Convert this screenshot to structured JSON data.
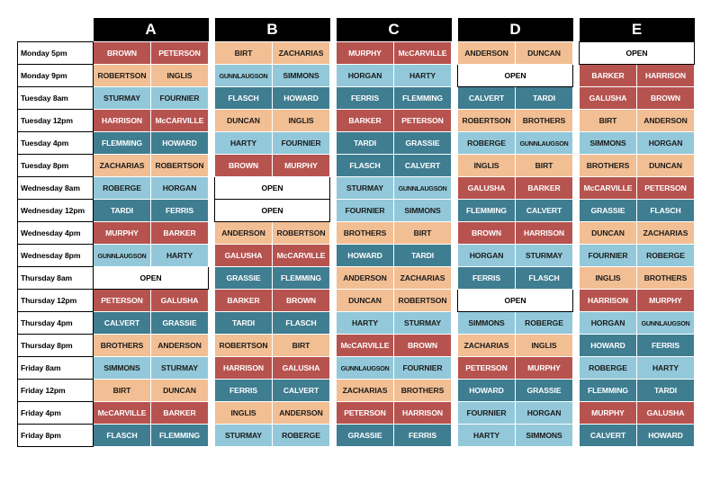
{
  "colors": {
    "red": "#b7534f",
    "blue": "#3f7d91",
    "light": "#92c8d9",
    "peach": "#f2be93",
    "header": "#000000"
  },
  "groups": [
    "A",
    "B",
    "C",
    "D",
    "E"
  ],
  "rows": [
    {
      "slot": "Monday 5pm",
      "groups": [
        [
          [
            "BROWN",
            "red"
          ],
          [
            "PETERSON",
            "red"
          ]
        ],
        [
          [
            "BIRT",
            "peach"
          ],
          [
            "ZACHARIAS",
            "peach"
          ]
        ],
        [
          [
            "MURPHY",
            "red"
          ],
          [
            "McCARVILLE",
            "red"
          ]
        ],
        [
          [
            "ANDERSON",
            "peach"
          ],
          [
            "DUNCAN",
            "peach"
          ]
        ],
        [
          [
            "OPEN",
            "open"
          ]
        ]
      ]
    },
    {
      "slot": "Monday 9pm",
      "groups": [
        [
          [
            "ROBERTSON",
            "peach"
          ],
          [
            "INGLIS",
            "peach"
          ]
        ],
        [
          [
            "GUNNLAUGSON",
            "light"
          ],
          [
            "SIMMONS",
            "light"
          ]
        ],
        [
          [
            "HORGAN",
            "light"
          ],
          [
            "HARTY",
            "light"
          ]
        ],
        [
          [
            "OPEN",
            "open"
          ]
        ],
        [
          [
            "BARKER",
            "red"
          ],
          [
            "HARRISON",
            "red"
          ]
        ]
      ]
    },
    {
      "slot": "Tuesday 8am",
      "groups": [
        [
          [
            "STURMAY",
            "light"
          ],
          [
            "FOURNIER",
            "light"
          ]
        ],
        [
          [
            "FLASCH",
            "blue"
          ],
          [
            "HOWARD",
            "blue"
          ]
        ],
        [
          [
            "FERRIS",
            "blue"
          ],
          [
            "FLEMMING",
            "blue"
          ]
        ],
        [
          [
            "CALVERT",
            "blue"
          ],
          [
            "TARDI",
            "blue"
          ]
        ],
        [
          [
            "GALUSHA",
            "red"
          ],
          [
            "BROWN",
            "red"
          ]
        ]
      ]
    },
    {
      "slot": "Tuesday 12pm",
      "groups": [
        [
          [
            "HARRISON",
            "red"
          ],
          [
            "McCARVILLE",
            "red"
          ]
        ],
        [
          [
            "DUNCAN",
            "peach"
          ],
          [
            "INGLIS",
            "peach"
          ]
        ],
        [
          [
            "BARKER",
            "red"
          ],
          [
            "PETERSON",
            "red"
          ]
        ],
        [
          [
            "ROBERTSON",
            "peach"
          ],
          [
            "BROTHERS",
            "peach"
          ]
        ],
        [
          [
            "BIRT",
            "peach"
          ],
          [
            "ANDERSON",
            "peach"
          ]
        ]
      ]
    },
    {
      "slot": "Tuesday 4pm",
      "groups": [
        [
          [
            "FLEMMING",
            "blue"
          ],
          [
            "HOWARD",
            "blue"
          ]
        ],
        [
          [
            "HARTY",
            "light"
          ],
          [
            "FOURNIER",
            "light"
          ]
        ],
        [
          [
            "TARDI",
            "blue"
          ],
          [
            "GRASSIE",
            "blue"
          ]
        ],
        [
          [
            "ROBERGE",
            "light"
          ],
          [
            "GUNNLAUGSON",
            "light"
          ]
        ],
        [
          [
            "SIMMONS",
            "light"
          ],
          [
            "HORGAN",
            "light"
          ]
        ]
      ]
    },
    {
      "slot": "Tuesday 8pm",
      "groups": [
        [
          [
            "ZACHARIAS",
            "peach"
          ],
          [
            "ROBERTSON",
            "peach"
          ]
        ],
        [
          [
            "BROWN",
            "red"
          ],
          [
            "MURPHY",
            "red"
          ]
        ],
        [
          [
            "FLASCH",
            "blue"
          ],
          [
            "CALVERT",
            "blue"
          ]
        ],
        [
          [
            "INGLIS",
            "peach"
          ],
          [
            "BIRT",
            "peach"
          ]
        ],
        [
          [
            "BROTHERS",
            "peach"
          ],
          [
            "DUNCAN",
            "peach"
          ]
        ]
      ]
    },
    {
      "slot": "Wednesday 8am",
      "groups": [
        [
          [
            "ROBERGE",
            "light"
          ],
          [
            "HORGAN",
            "light"
          ]
        ],
        [
          [
            "OPEN",
            "open"
          ]
        ],
        [
          [
            "STURMAY",
            "light"
          ],
          [
            "GUNNLAUGSON",
            "light"
          ]
        ],
        [
          [
            "GALUSHA",
            "red"
          ],
          [
            "BARKER",
            "red"
          ]
        ],
        [
          [
            "McCARVILLE",
            "red"
          ],
          [
            "PETERSON",
            "red"
          ]
        ]
      ]
    },
    {
      "slot": "Wednesday 12pm",
      "groups": [
        [
          [
            "TARDI",
            "blue"
          ],
          [
            "FERRIS",
            "blue"
          ]
        ],
        [
          [
            "OPEN",
            "open"
          ]
        ],
        [
          [
            "FOURNIER",
            "light"
          ],
          [
            "SIMMONS",
            "light"
          ]
        ],
        [
          [
            "FLEMMING",
            "blue"
          ],
          [
            "CALVERT",
            "blue"
          ]
        ],
        [
          [
            "GRASSIE",
            "blue"
          ],
          [
            "FLASCH",
            "blue"
          ]
        ]
      ]
    },
    {
      "slot": "Wednesday 4pm",
      "groups": [
        [
          [
            "MURPHY",
            "red"
          ],
          [
            "BARKER",
            "red"
          ]
        ],
        [
          [
            "ANDERSON",
            "peach"
          ],
          [
            "ROBERTSON",
            "peach"
          ]
        ],
        [
          [
            "BROTHERS",
            "peach"
          ],
          [
            "BIRT",
            "peach"
          ]
        ],
        [
          [
            "BROWN",
            "red"
          ],
          [
            "HARRISON",
            "red"
          ]
        ],
        [
          [
            "DUNCAN",
            "peach"
          ],
          [
            "ZACHARIAS",
            "peach"
          ]
        ]
      ]
    },
    {
      "slot": "Wednesday 8pm",
      "groups": [
        [
          [
            "GUNNLAUGSON",
            "light"
          ],
          [
            "HARTY",
            "light"
          ]
        ],
        [
          [
            "GALUSHA",
            "red"
          ],
          [
            "McCARVILLE",
            "red"
          ]
        ],
        [
          [
            "HOWARD",
            "blue"
          ],
          [
            "TARDI",
            "blue"
          ]
        ],
        [
          [
            "HORGAN",
            "light"
          ],
          [
            "STURMAY",
            "light"
          ]
        ],
        [
          [
            "FOURNIER",
            "light"
          ],
          [
            "ROBERGE",
            "light"
          ]
        ]
      ]
    },
    {
      "slot": "Thursday 8am",
      "groups": [
        [
          [
            "OPEN",
            "open"
          ]
        ],
        [
          [
            "GRASSIE",
            "blue"
          ],
          [
            "FLEMMING",
            "blue"
          ]
        ],
        [
          [
            "ANDERSON",
            "peach"
          ],
          [
            "ZACHARIAS",
            "peach"
          ]
        ],
        [
          [
            "FERRIS",
            "blue"
          ],
          [
            "FLASCH",
            "blue"
          ]
        ],
        [
          [
            "INGLIS",
            "peach"
          ],
          [
            "BROTHERS",
            "peach"
          ]
        ]
      ]
    },
    {
      "slot": "Thursday 12pm",
      "groups": [
        [
          [
            "PETERSON",
            "red"
          ],
          [
            "GALUSHA",
            "red"
          ]
        ],
        [
          [
            "BARKER",
            "red"
          ],
          [
            "BROWN",
            "red"
          ]
        ],
        [
          [
            "DUNCAN",
            "peach"
          ],
          [
            "ROBERTSON",
            "peach"
          ]
        ],
        [
          [
            "OPEN",
            "open"
          ]
        ],
        [
          [
            "HARRISON",
            "red"
          ],
          [
            "MURPHY",
            "red"
          ]
        ]
      ]
    },
    {
      "slot": "Thursday 4pm",
      "groups": [
        [
          [
            "CALVERT",
            "blue"
          ],
          [
            "GRASSIE",
            "blue"
          ]
        ],
        [
          [
            "TARDI",
            "blue"
          ],
          [
            "FLASCH",
            "blue"
          ]
        ],
        [
          [
            "HARTY",
            "light"
          ],
          [
            "STURMAY",
            "light"
          ]
        ],
        [
          [
            "SIMMONS",
            "light"
          ],
          [
            "ROBERGE",
            "light"
          ]
        ],
        [
          [
            "HORGAN",
            "light"
          ],
          [
            "GUNNLAUGSON",
            "light"
          ]
        ]
      ]
    },
    {
      "slot": "Thursday 8pm",
      "groups": [
        [
          [
            "BROTHERS",
            "peach"
          ],
          [
            "ANDERSON",
            "peach"
          ]
        ],
        [
          [
            "ROBERTSON",
            "peach"
          ],
          [
            "BIRT",
            "peach"
          ]
        ],
        [
          [
            "McCARVILLE",
            "red"
          ],
          [
            "BROWN",
            "red"
          ]
        ],
        [
          [
            "ZACHARIAS",
            "peach"
          ],
          [
            "INGLIS",
            "peach"
          ]
        ],
        [
          [
            "HOWARD",
            "blue"
          ],
          [
            "FERRIS",
            "blue"
          ]
        ]
      ]
    },
    {
      "slot": "Friday 8am",
      "groups": [
        [
          [
            "SIMMONS",
            "light"
          ],
          [
            "STURMAY",
            "light"
          ]
        ],
        [
          [
            "HARRISON",
            "red"
          ],
          [
            "GALUSHA",
            "red"
          ]
        ],
        [
          [
            "GUNNLAUGSON",
            "light"
          ],
          [
            "FOURNIER",
            "light"
          ]
        ],
        [
          [
            "PETERSON",
            "red"
          ],
          [
            "MURPHY",
            "red"
          ]
        ],
        [
          [
            "ROBERGE",
            "light"
          ],
          [
            "HARTY",
            "light"
          ]
        ]
      ]
    },
    {
      "slot": "Friday 12pm",
      "groups": [
        [
          [
            "BIRT",
            "peach"
          ],
          [
            "DUNCAN",
            "peach"
          ]
        ],
        [
          [
            "FERRIS",
            "blue"
          ],
          [
            "CALVERT",
            "blue"
          ]
        ],
        [
          [
            "ZACHARIAS",
            "peach"
          ],
          [
            "BROTHERS",
            "peach"
          ]
        ],
        [
          [
            "HOWARD",
            "blue"
          ],
          [
            "GRASSIE",
            "blue"
          ]
        ],
        [
          [
            "FLEMMING",
            "blue"
          ],
          [
            "TARDI",
            "blue"
          ]
        ]
      ]
    },
    {
      "slot": "Friday 4pm",
      "groups": [
        [
          [
            "McCARVILLE",
            "red"
          ],
          [
            "BARKER",
            "red"
          ]
        ],
        [
          [
            "INGLIS",
            "peach"
          ],
          [
            "ANDERSON",
            "peach"
          ]
        ],
        [
          [
            "PETERSON",
            "red"
          ],
          [
            "HARRISON",
            "red"
          ]
        ],
        [
          [
            "FOURNIER",
            "light"
          ],
          [
            "HORGAN",
            "light"
          ]
        ],
        [
          [
            "MURPHY",
            "red"
          ],
          [
            "GALUSHA",
            "red"
          ]
        ]
      ]
    },
    {
      "slot": "Friday 8pm",
      "groups": [
        [
          [
            "FLASCH",
            "blue"
          ],
          [
            "FLEMMING",
            "blue"
          ]
        ],
        [
          [
            "STURMAY",
            "light"
          ],
          [
            "ROBERGE",
            "light"
          ]
        ],
        [
          [
            "GRASSIE",
            "blue"
          ],
          [
            "FERRIS",
            "blue"
          ]
        ],
        [
          [
            "HARTY",
            "light"
          ],
          [
            "SIMMONS",
            "light"
          ]
        ],
        [
          [
            "CALVERT",
            "blue"
          ],
          [
            "HOWARD",
            "blue"
          ]
        ]
      ]
    }
  ]
}
